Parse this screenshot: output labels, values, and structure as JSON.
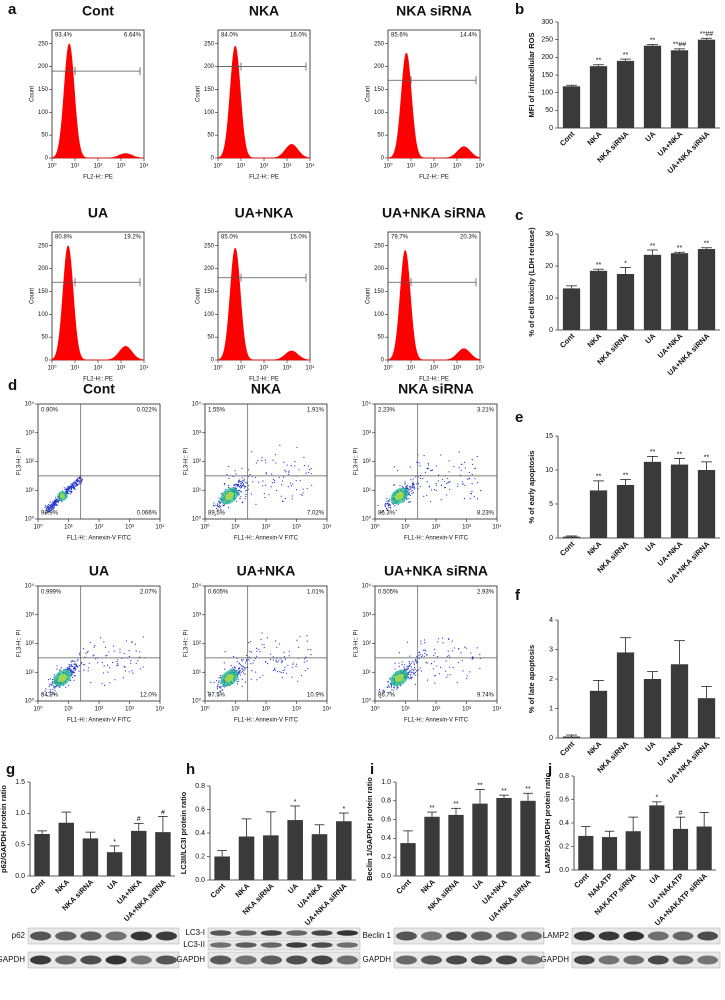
{
  "panel_labels": [
    "a",
    "b",
    "c",
    "d",
    "e",
    "f",
    "g",
    "h",
    "i",
    "j"
  ],
  "histograms": {
    "x_label": "FL2-H:: PE",
    "y_label": "Count",
    "color": "#ff0000",
    "xlim": [
      0,
      4
    ],
    "ylim": [
      0,
      280
    ],
    "yticks": [
      0,
      50,
      100,
      150,
      200,
      250
    ],
    "xticks": [
      {
        "value": 0,
        "label": "10⁰"
      },
      {
        "value": 1,
        "label": "10¹"
      },
      {
        "value": 2,
        "label": "10²"
      },
      {
        "value": 3,
        "label": "10³"
      },
      {
        "value": 4,
        "label": "10⁴"
      }
    ],
    "plots": [
      {
        "title": "Cont",
        "left_label": "93.4%",
        "right_label": "6.64%",
        "gate": 190,
        "peaks": [
          {
            "x": 0.75,
            "height": 250
          },
          {
            "x": 3.2,
            "height": 10
          }
        ]
      },
      {
        "title": "NKA",
        "left_label": "84.0%",
        "right_label": "16.0%",
        "gate": 200,
        "peaks": [
          {
            "x": 0.75,
            "height": 245
          },
          {
            "x": 3.2,
            "height": 30
          }
        ]
      },
      {
        "title": "NKA siRNA",
        "left_label": "85.6%",
        "right_label": "14.4%",
        "gate": 170,
        "peaks": [
          {
            "x": 0.8,
            "height": 230
          },
          {
            "x": 3.3,
            "height": 25
          }
        ]
      },
      {
        "title": "UA",
        "left_label": "80.8%",
        "right_label": "19.2%",
        "gate": 170,
        "peaks": [
          {
            "x": 0.7,
            "height": 250
          },
          {
            "x": 3.2,
            "height": 30
          }
        ]
      },
      {
        "title": "UA+NKA",
        "left_label": "85.0%",
        "right_label": "15.0%",
        "gate": 180,
        "peaks": [
          {
            "x": 0.75,
            "height": 245
          },
          {
            "x": 3.2,
            "height": 20
          }
        ]
      },
      {
        "title": "UA+NKA siRNA",
        "left_label": "79.7%",
        "right_label": "20.3%",
        "gate": 170,
        "peaks": [
          {
            "x": 0.75,
            "height": 240
          },
          {
            "x": 3.3,
            "height": 25
          }
        ]
      }
    ]
  },
  "dot_plots": {
    "x_label": "FL1-H:: Annexin-V FITC",
    "y_label": "FL3-H:: PI",
    "xlim": [
      0,
      4
    ],
    "ylim": [
      0,
      4
    ],
    "gate_x": 1.4,
    "gate_y": 1.5,
    "ticks": [
      {
        "value": 0,
        "label": "10⁰"
      },
      {
        "value": 1,
        "label": "10¹"
      },
      {
        "value": 2,
        "label": "10²"
      },
      {
        "value": 3,
        "label": "10³"
      },
      {
        "value": 4,
        "label": "10⁴"
      }
    ],
    "plots": [
      {
        "title": "Cont",
        "upper_left": "0.90%",
        "upper_right": "0.022%",
        "lower_right": "0.066%",
        "lower_left": "98.9%"
      },
      {
        "title": "NKA",
        "upper_left": "1.55%",
        "upper_right": "1.91%",
        "lower_right": "7.02%",
        "lower_left": "89.5%"
      },
      {
        "title": "NKA siRNA",
        "upper_left": "2.23%",
        "upper_right": "3.21%",
        "lower_right": "8.23%",
        "lower_left": "86.3%"
      },
      {
        "title": "UA",
        "upper_left": "0.999%",
        "upper_right": "2.07%",
        "lower_right": "12.0%",
        "lower_left": "84.9%"
      },
      {
        "title": "UA+NKA",
        "upper_left": "0.605%",
        "upper_right": "1.01%",
        "lower_right": "10.9%",
        "lower_left": "87.5%"
      },
      {
        "title": "UA+NKA siRNA",
        "upper_left": "0.505%",
        "upper_right": "2.93%",
        "lower_right": "9.74%",
        "lower_left": "86.7%"
      }
    ]
  },
  "chart_data": [
    {
      "type": "bar",
      "y_label": "MFI of intracellular ROS",
      "color": "#3a3a3a",
      "categories": [
        "Cont",
        "NKA",
        "NKA siRNA",
        "UA",
        "UA+NKA",
        "UA+NKA siRNA"
      ],
      "values": [
        118,
        175,
        190,
        233,
        220,
        250
      ],
      "errors": [
        3,
        4,
        5,
        3,
        4,
        4
      ],
      "annotations": [
        null,
        "**",
        "**",
        "**",
        "**##",
        "**##"
      ],
      "ylim": [
        0,
        300
      ],
      "yticks": [
        0,
        50,
        100,
        150,
        200,
        250,
        300
      ]
    },
    {
      "type": "bar",
      "y_label": "% of cell toxicity (LDH release)",
      "color": "#3a3a3a",
      "categories": [
        "Cont",
        "NKA",
        "NKA siRNA",
        "UA",
        "UA+NKA",
        "UA+NKA siRNA"
      ],
      "values": [
        13,
        18.5,
        17.5,
        23.5,
        24,
        25.3
      ],
      "errors": [
        0.8,
        0.5,
        2,
        1.5,
        0.3,
        0.4
      ],
      "annotations": [
        null,
        "**",
        "*",
        "**",
        "**",
        "**"
      ],
      "ylim": [
        0,
        30
      ],
      "yticks": [
        0,
        10,
        20,
        30
      ]
    },
    {
      "type": "bar",
      "y_label": "% of early apoptosis",
      "color": "#3a3a3a",
      "categories": [
        "Cont",
        "NKA",
        "NKA siRNA",
        "UA",
        "UA+NKA",
        "UA+NKA siRNA"
      ],
      "values": [
        0.2,
        7,
        7.8,
        11.2,
        10.8,
        10
      ],
      "errors": [
        0.1,
        1.4,
        0.8,
        0.8,
        0.9,
        1.2
      ],
      "annotations": [
        null,
        "**",
        "**",
        "**",
        "**",
        "**"
      ],
      "ylim": [
        0,
        15
      ],
      "yticks": [
        0,
        5,
        10,
        15
      ]
    },
    {
      "type": "bar",
      "y_label": "% of late apoptosis",
      "color": "#3a3a3a",
      "categories": [
        "Cont",
        "NKA",
        "NKA siRNA",
        "UA",
        "UA+NKA",
        "UA+NKA siRNA"
      ],
      "values": [
        0.05,
        1.6,
        2.9,
        2.0,
        2.5,
        1.35
      ],
      "errors": [
        0.05,
        0.35,
        0.5,
        0.25,
        0.8,
        0.4
      ],
      "annotations": [
        null,
        null,
        null,
        null,
        null,
        null
      ],
      "ylim": [
        0,
        4
      ],
      "yticks": [
        0,
        1,
        2,
        3,
        4
      ]
    },
    {
      "type": "bar",
      "y_label": "p62/GAPDH protein ratio",
      "color": "#3a3a3a",
      "categories": [
        "Cont",
        "NKA",
        "NKA siRNA",
        "UA",
        "UA+NKA",
        "UA+NKA siRNA"
      ],
      "values": [
        0.67,
        0.85,
        0.6,
        0.38,
        0.72,
        0.7
      ],
      "errors": [
        0.05,
        0.17,
        0.1,
        0.1,
        0.12,
        0.25
      ],
      "annotations": [
        null,
        null,
        null,
        "*",
        "#",
        "#"
      ],
      "ylim": [
        0,
        1.5
      ],
      "yticks": [
        {
          "value": 0,
          "label": "0.0"
        },
        0.5,
        {
          "value": 1,
          "label": "1.0"
        },
        1.5
      ],
      "blot_labels": [
        "p62",
        "GAPDH"
      ]
    },
    {
      "type": "bar",
      "y_label": "LC3II/LC3I protein ratio",
      "color": "#3a3a3a",
      "categories": [
        "Cont",
        "NKA",
        "NKA siRNA",
        "UA",
        "UA+NKA",
        "UA+NKA siRNA"
      ],
      "values": [
        0.2,
        0.37,
        0.38,
        0.51,
        0.39,
        0.5
      ],
      "errors": [
        0.05,
        0.15,
        0.2,
        0.12,
        0.08,
        0.07
      ],
      "annotations": [
        null,
        null,
        null,
        "*",
        null,
        "*"
      ],
      "ylim": [
        0,
        0.8
      ],
      "yticks": [
        {
          "value": 0,
          "label": "0.0"
        },
        0.2,
        0.4,
        0.6,
        0.8
      ],
      "blot_labels": [
        "LC3-I",
        "LC3-II",
        "GAPDH"
      ]
    },
    {
      "type": "bar",
      "y_label": "Beclin 1/GAPDH protein ratio",
      "color": "#3a3a3a",
      "categories": [
        "Cont",
        "NKA",
        "NKA siRNA",
        "UA",
        "UA+NKA",
        "UA+NKA siRNA"
      ],
      "values": [
        0.35,
        0.63,
        0.65,
        0.77,
        0.83,
        0.8
      ],
      "errors": [
        0.13,
        0.05,
        0.07,
        0.15,
        0.03,
        0.08
      ],
      "annotations": [
        null,
        "**",
        "**",
        "**",
        "**",
        "**"
      ],
      "ylim": [
        0,
        1.0
      ],
      "yticks": [
        {
          "value": 0,
          "label": "0.0"
        },
        0.2,
        0.4,
        0.6,
        0.8,
        {
          "value": 1,
          "label": "1.0"
        }
      ],
      "blot_labels": [
        "Beclin 1",
        "GAPDH"
      ]
    },
    {
      "type": "bar",
      "y_label": "LAMP2/GAPDH protein ratio",
      "color": "#3a3a3a",
      "categories": [
        "Cont",
        "NAKATP",
        "NAKATP siRNA",
        "UA",
        "UA+NAKATP",
        "UA+NAKATP siRNA"
      ],
      "values": [
        0.29,
        0.28,
        0.33,
        0.55,
        0.35,
        0.37
      ],
      "errors": [
        0.08,
        0.05,
        0.12,
        0.03,
        0.1,
        0.12
      ],
      "annotations": [
        null,
        null,
        null,
        "*",
        "#",
        null
      ],
      "ylim": [
        0,
        0.8
      ],
      "yticks": [
        {
          "value": 0,
          "label": "0.0"
        },
        0.2,
        0.4,
        0.6,
        0.8
      ],
      "blot_labels": [
        "LAMP2",
        "GAPDH"
      ]
    }
  ]
}
